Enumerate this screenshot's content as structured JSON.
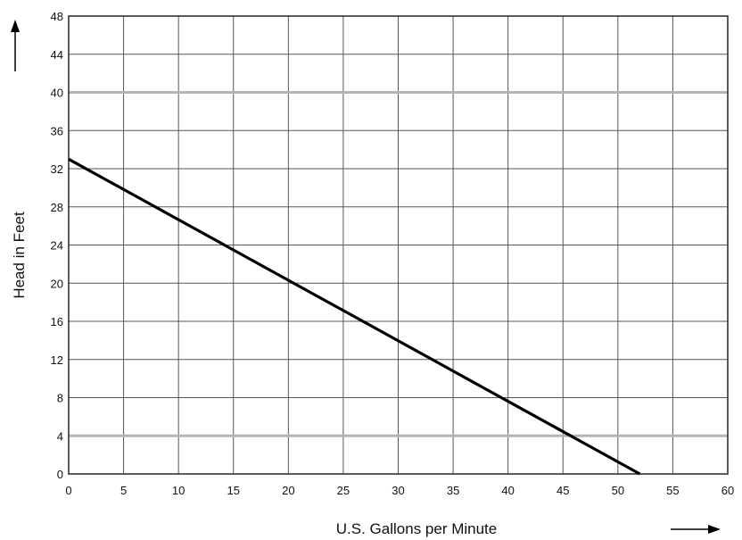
{
  "chart_data": {
    "type": "line",
    "xlabel": "U.S. Gallons per Minute",
    "ylabel": "Head in Feet",
    "xlim": [
      0,
      60
    ],
    "ylim": [
      0,
      48
    ],
    "x_ticks": [
      0,
      5,
      10,
      15,
      20,
      25,
      30,
      35,
      40,
      45,
      50,
      55,
      60
    ],
    "y_ticks": [
      0,
      4,
      8,
      12,
      16,
      20,
      24,
      28,
      32,
      36,
      40,
      44,
      48
    ],
    "grid": true,
    "series": [
      {
        "x": [
          0,
          52
        ],
        "y": [
          33,
          0
        ],
        "color": "#000000"
      }
    ],
    "colors": {
      "grid": "#555555",
      "highlight_grid": "#b5b5b5",
      "line": "#000000"
    }
  }
}
